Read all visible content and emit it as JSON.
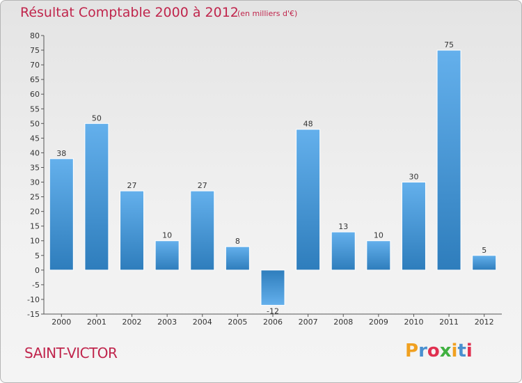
{
  "chart_data": {
    "type": "bar",
    "title": "Résultat Comptable 2000 à 2012",
    "subtitle": "(en milliers d'€)",
    "categories": [
      "2000",
      "2001",
      "2002",
      "2003",
      "2004",
      "2005",
      "2006",
      "2007",
      "2008",
      "2009",
      "2010",
      "2011",
      "2012"
    ],
    "values": [
      38,
      50,
      27,
      10,
      27,
      8,
      -12,
      48,
      13,
      10,
      30,
      75,
      5
    ],
    "value_labels": [
      "38",
      "50",
      "27",
      "10",
      "27",
      "8",
      "-12",
      "48",
      "13",
      "10",
      "30",
      "75",
      "5"
    ],
    "y_ticks": [
      80,
      75,
      70,
      65,
      60,
      55,
      50,
      45,
      40,
      35,
      30,
      25,
      20,
      15,
      10,
      5,
      0,
      -5,
      -10,
      -15
    ],
    "ylim": [
      -15,
      80
    ],
    "xlabel": "",
    "ylabel": "",
    "grid": false
  },
  "footer": {
    "commune": "SAINT-VICTOR",
    "brand": [
      "P",
      "r",
      "o",
      "x",
      "i",
      "t",
      "i"
    ]
  },
  "colors": {
    "title": "#c0254c",
    "bar_light": "#64b0ec",
    "bar_dark": "#2e7dbc",
    "brand": [
      "#f0a020",
      "#4a90d0",
      "#e03050",
      "#40b040",
      "#f0a020",
      "#4a90d0",
      "#e03050"
    ]
  }
}
